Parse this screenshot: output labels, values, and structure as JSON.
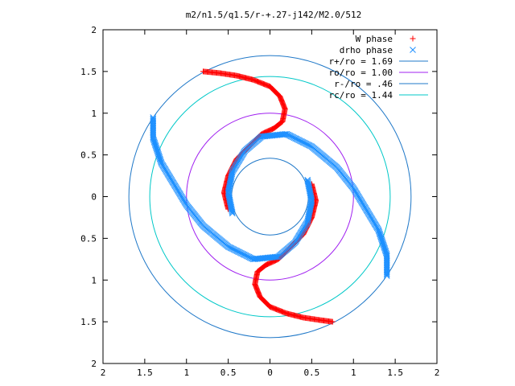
{
  "chart_data": {
    "type": "scatter",
    "title": "m2/n1.5/q1.5/r-+.27-j142/M2.0/512",
    "xlabel": "",
    "ylabel": "",
    "xlim": [
      -2,
      2
    ],
    "ylim": [
      -2,
      2
    ],
    "x_ticks": [
      -2,
      -1.5,
      -1,
      -0.5,
      0,
      0.5,
      1,
      1.5,
      2
    ],
    "y_ticks": [
      -2,
      -1.5,
      -1,
      -0.5,
      0,
      0.5,
      1,
      1.5,
      2
    ],
    "x_tick_labels": [
      "2",
      "1.5",
      "1",
      "0.5",
      "0",
      "0.5",
      "1",
      "1.5",
      "2"
    ],
    "y_tick_labels": [
      "2",
      "1.5",
      "1",
      "0.5",
      "0",
      "0.5",
      "1",
      "1.5",
      "2"
    ],
    "grid": false,
    "legend_position": "top-right",
    "series": [
      {
        "name": "W phase",
        "marker": "+",
        "color": "#ff0000",
        "curves": [
          [
            [
              -0.8,
              1.5
            ],
            [
              -0.6,
              1.48
            ],
            [
              -0.4,
              1.45
            ],
            [
              -0.2,
              1.4
            ],
            [
              0.0,
              1.32
            ],
            [
              0.12,
              1.2
            ],
            [
              0.18,
              1.05
            ],
            [
              0.15,
              0.9
            ],
            [
              0.05,
              0.82
            ],
            [
              -0.1,
              0.75
            ],
            [
              -0.25,
              0.6
            ],
            [
              -0.4,
              0.45
            ],
            [
              -0.5,
              0.25
            ],
            [
              -0.55,
              0.05
            ],
            [
              -0.5,
              -0.15
            ]
          ],
          [
            [
              0.75,
              -1.5
            ],
            [
              0.6,
              -1.48
            ],
            [
              0.4,
              -1.45
            ],
            [
              0.2,
              -1.4
            ],
            [
              0.0,
              -1.32
            ],
            [
              -0.12,
              -1.2
            ],
            [
              -0.18,
              -1.05
            ],
            [
              -0.15,
              -0.9
            ],
            [
              -0.05,
              -0.82
            ],
            [
              0.1,
              -0.75
            ],
            [
              0.25,
              -0.6
            ],
            [
              0.4,
              -0.45
            ],
            [
              0.5,
              -0.25
            ],
            [
              0.55,
              -0.05
            ],
            [
              0.5,
              0.15
            ]
          ]
        ]
      },
      {
        "name": "drho phase",
        "marker": "x",
        "color": "#1e90ff",
        "curves": [
          [
            [
              -1.4,
              0.95
            ],
            [
              -1.4,
              0.7
            ],
            [
              -1.3,
              0.4
            ],
            [
              -1.15,
              0.15
            ],
            [
              -1.0,
              -0.1
            ],
            [
              -0.8,
              -0.35
            ],
            [
              -0.5,
              -0.6
            ],
            [
              -0.2,
              -0.75
            ],
            [
              0.1,
              -0.72
            ],
            [
              0.3,
              -0.55
            ],
            [
              0.45,
              -0.3
            ],
            [
              0.5,
              -0.05
            ],
            [
              0.45,
              0.2
            ]
          ],
          [
            [
              1.4,
              -0.95
            ],
            [
              1.4,
              -0.7
            ],
            [
              1.3,
              -0.4
            ],
            [
              1.15,
              -0.15
            ],
            [
              1.0,
              0.1
            ],
            [
              0.8,
              0.35
            ],
            [
              0.5,
              0.6
            ],
            [
              0.2,
              0.75
            ],
            [
              -0.1,
              0.72
            ],
            [
              -0.3,
              0.55
            ],
            [
              -0.45,
              0.3
            ],
            [
              -0.5,
              0.05
            ],
            [
              -0.45,
              -0.2
            ]
          ]
        ]
      },
      {
        "name": "r+/ro = 1.69",
        "type": "circle",
        "radius": 1.69,
        "color": "#1f78c8"
      },
      {
        "name": "ro/ro = 1.00",
        "type": "circle",
        "radius": 1.0,
        "color": "#a020f0"
      },
      {
        "name": "r-/ro = .46",
        "type": "circle",
        "radius": 0.46,
        "color": "#1f78c8"
      },
      {
        "name": "rc/ro = 1.44",
        "type": "circle",
        "radius": 1.44,
        "color": "#00c8c8"
      }
    ]
  }
}
